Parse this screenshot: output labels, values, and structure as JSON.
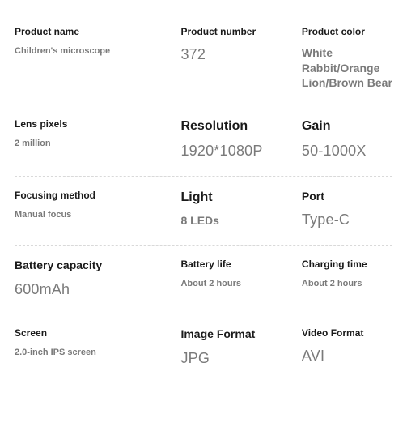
{
  "rows": [
    {
      "cells": [
        {
          "label": "Product name",
          "value": "Children's microscope",
          "labelClass": "label-sm",
          "valueClass": "val-sm"
        },
        {
          "label": "Product number",
          "value": "372",
          "labelClass": "label-sm",
          "valueClass": "val-lg"
        },
        {
          "label": "Product color",
          "value": "White Rabbit/Orange Lion/Brown Bear",
          "labelClass": "label-sm",
          "valueClass": "val-md"
        }
      ]
    },
    {
      "cells": [
        {
          "label": "Lens pixels",
          "value": "2 million",
          "labelClass": "label-sm",
          "valueClass": "val-sm"
        },
        {
          "label": "Resolution",
          "value": "1920*1080P",
          "labelClass": "label-lg",
          "valueClass": "val-lg"
        },
        {
          "label": "Gain",
          "value": "50-1000X",
          "labelClass": "label-lg",
          "valueClass": "val-lg"
        }
      ]
    },
    {
      "cells": [
        {
          "label": "Focusing method",
          "value": "Manual focus",
          "labelClass": "label-sm",
          "valueClass": "val-sm"
        },
        {
          "label": "Light",
          "value": "8 LEDs",
          "labelClass": "label-lg",
          "valueClass": "val-md"
        },
        {
          "label": "Port",
          "value": "Type-C",
          "labelClass": "label-md",
          "valueClass": "val-lg"
        }
      ]
    },
    {
      "cells": [
        {
          "label": "Battery capacity",
          "value": "600mAh",
          "labelClass": "label-md",
          "valueClass": "val-lg"
        },
        {
          "label": "Battery life",
          "value": "About 2 hours",
          "labelClass": "label-sm",
          "valueClass": "val-sm"
        },
        {
          "label": "Charging time",
          "value": "About 2 hours",
          "labelClass": "label-sm",
          "valueClass": "val-sm"
        }
      ]
    },
    {
      "cells": [
        {
          "label": "Screen",
          "value": "2.0-inch IPS screen",
          "labelClass": "label-sm",
          "valueClass": "val-sm"
        },
        {
          "label": "Image Format",
          "value": "JPG",
          "labelClass": "label-md",
          "valueClass": "val-lg"
        },
        {
          "label": "Video Format",
          "value": "AVI",
          "labelClass": "label-sm",
          "valueClass": "val-lg"
        }
      ]
    }
  ]
}
